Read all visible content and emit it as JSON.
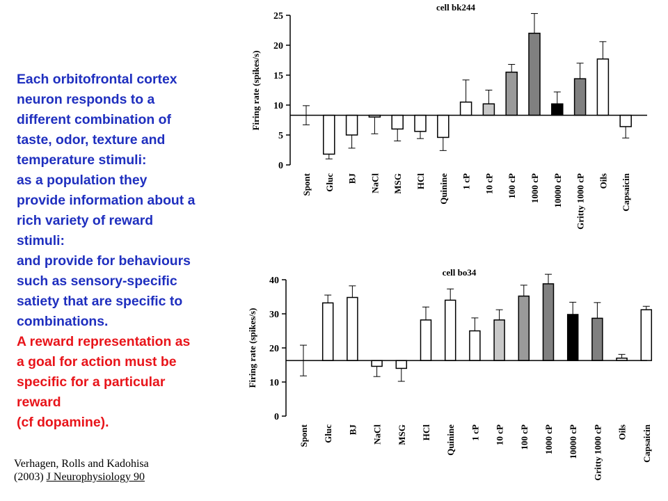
{
  "text_block": {
    "blue_lines": [
      "Each orbitofrontal cortex",
      "neuron responds to a",
      "different combination of",
      "taste, odor, texture and",
      "temperature stimuli:",
      "as a population they",
      "provide information about a",
      "rich variety of reward",
      "stimuli:",
      "and provide for behaviours",
      "such as sensory-specific",
      "satiety that are specific to",
      "combinations."
    ],
    "red_lines": [
      "A reward representation as",
      "a goal for action must be",
      "specific for a particular",
      "reward",
      "(cf dopamine)."
    ],
    "blue_color": "#1f2fbf",
    "red_color": "#e8141a"
  },
  "citation": {
    "line1": "Verhagen, Rolls and Kadohisa",
    "line2_prefix": "(2003) ",
    "journal": "J Neurophysiology 90"
  },
  "chart_data": [
    {
      "type": "bar",
      "title": "cell bk244",
      "ylabel": "Firing rate (spikes/s)",
      "ylim": [
        0,
        25
      ],
      "yticks": [
        0,
        5,
        10,
        15,
        20,
        25
      ],
      "baseline": 8.3,
      "categories": [
        "Spont",
        "Gluc",
        "BJ",
        "NaCl",
        "MSG",
        "HCl",
        "Quinine",
        "1 cP",
        "10 cP",
        "100 cP",
        "1000 cP",
        "10000 cP",
        "Gritty 1000 cP",
        "Oils",
        "Capsaicin"
      ],
      "values": [
        8.3,
        1.8,
        5.0,
        8.0,
        6.0,
        5.6,
        4.6,
        10.5,
        10.2,
        15.5,
        22.0,
        10.2,
        14.4,
        17.7,
        6.4
      ],
      "errors": [
        1.6,
        0.8,
        2.2,
        2.8,
        2.0,
        1.2,
        2.2,
        3.7,
        2.3,
        1.3,
        3.3,
        2.0,
        2.6,
        2.9,
        1.9
      ],
      "fills": [
        "none",
        "#ffffff",
        "#ffffff",
        "#ffffff",
        "#ffffff",
        "#ffffff",
        "#ffffff",
        "#ffffff",
        "#c8c8c8",
        "#9a9a9a",
        "#808080",
        "#000000",
        "#808080",
        "#ffffff",
        "#ffffff"
      ],
      "grid": false,
      "legend": "none"
    },
    {
      "type": "bar",
      "title": "cell bo34",
      "ylabel": "Firing rate (spikes/s)",
      "ylim": [
        0,
        40
      ],
      "yticks": [
        0,
        10,
        20,
        30,
        40
      ],
      "baseline": 16.3,
      "categories": [
        "Spont",
        "Gluc",
        "BJ",
        "NaCl",
        "MSG",
        "HCl",
        "Quinine",
        "1 cP",
        "10 cP",
        "100 cP",
        "1000 cP",
        "10000 cP",
        "Gritty 1000 cP",
        "Oils",
        "Capsaicin"
      ],
      "values": [
        16.3,
        33.2,
        34.8,
        14.6,
        14.0,
        28.2,
        34.0,
        25.0,
        28.2,
        35.2,
        38.8,
        29.8,
        28.7,
        17.0,
        31.2
      ],
      "errors": [
        4.5,
        2.3,
        3.4,
        3.0,
        3.8,
        3.8,
        3.3,
        3.8,
        3.0,
        3.2,
        2.8,
        3.6,
        4.6,
        1.1,
        1.0
      ],
      "fills": [
        "none",
        "#ffffff",
        "#ffffff",
        "#ffffff",
        "#ffffff",
        "#ffffff",
        "#ffffff",
        "#ffffff",
        "#c8c8c8",
        "#9a9a9a",
        "#808080",
        "#000000",
        "#808080",
        "#ffffff",
        "#ffffff"
      ],
      "grid": false,
      "legend": "none"
    }
  ]
}
